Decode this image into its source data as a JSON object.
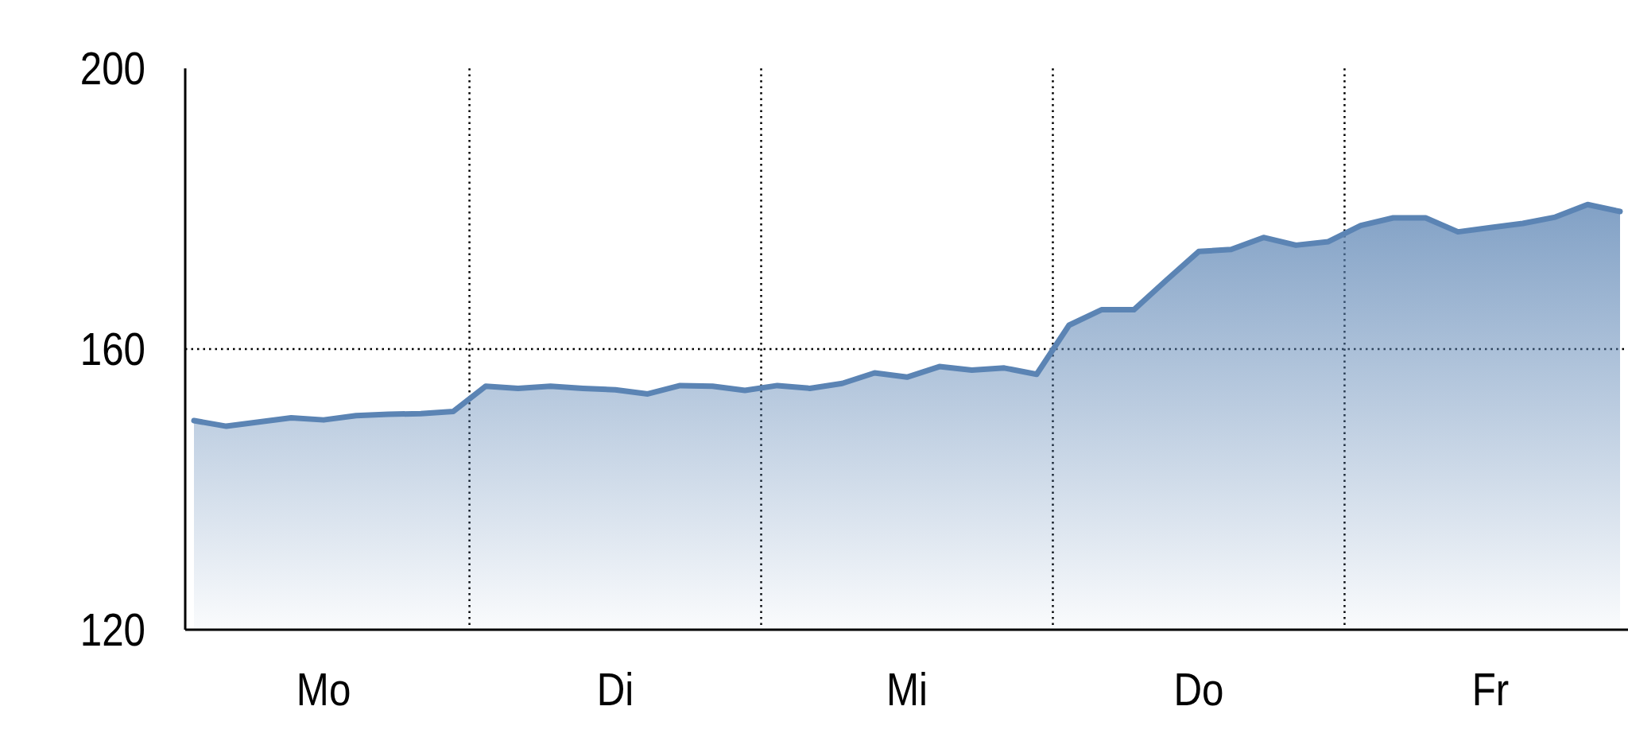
{
  "chart_data": {
    "type": "area",
    "categories": [
      null,
      null,
      null,
      null,
      "Mo",
      null,
      null,
      null,
      null,
      null,
      null,
      null,
      null,
      "Di",
      null,
      null,
      null,
      null,
      null,
      null,
      null,
      null,
      "Mi",
      null,
      null,
      null,
      null,
      null,
      null,
      null,
      null,
      "Do",
      null,
      null,
      null,
      null,
      null,
      null,
      null,
      null,
      "Fr",
      null,
      null,
      null,
      null
    ],
    "series": [
      {
        "color": "#5b84b4",
        "values": [
          149.8,
          149.0,
          149.6,
          150.2,
          149.9,
          150.5,
          150.7,
          150.8,
          151.1,
          154.7,
          154.4,
          154.7,
          154.4,
          154.2,
          153.6,
          154.8,
          154.7,
          154.1,
          154.8,
          154.4,
          155.1,
          156.6,
          156.0,
          157.5,
          157.0,
          157.3,
          156.4,
          163.4,
          165.6,
          165.6,
          169.8,
          173.9,
          174.2,
          175.9,
          174.8,
          175.3,
          177.6,
          178.7,
          178.7,
          176.7,
          177.3,
          177.9,
          178.8,
          180.6,
          179.6
        ]
      }
    ],
    "ylim": [
      120,
      200
    ],
    "yticks": [
      120,
      160,
      200
    ],
    "ref_lines": [
      {
        "axis": "y",
        "value": 160,
        "line_style": "dotted"
      }
    ]
  }
}
